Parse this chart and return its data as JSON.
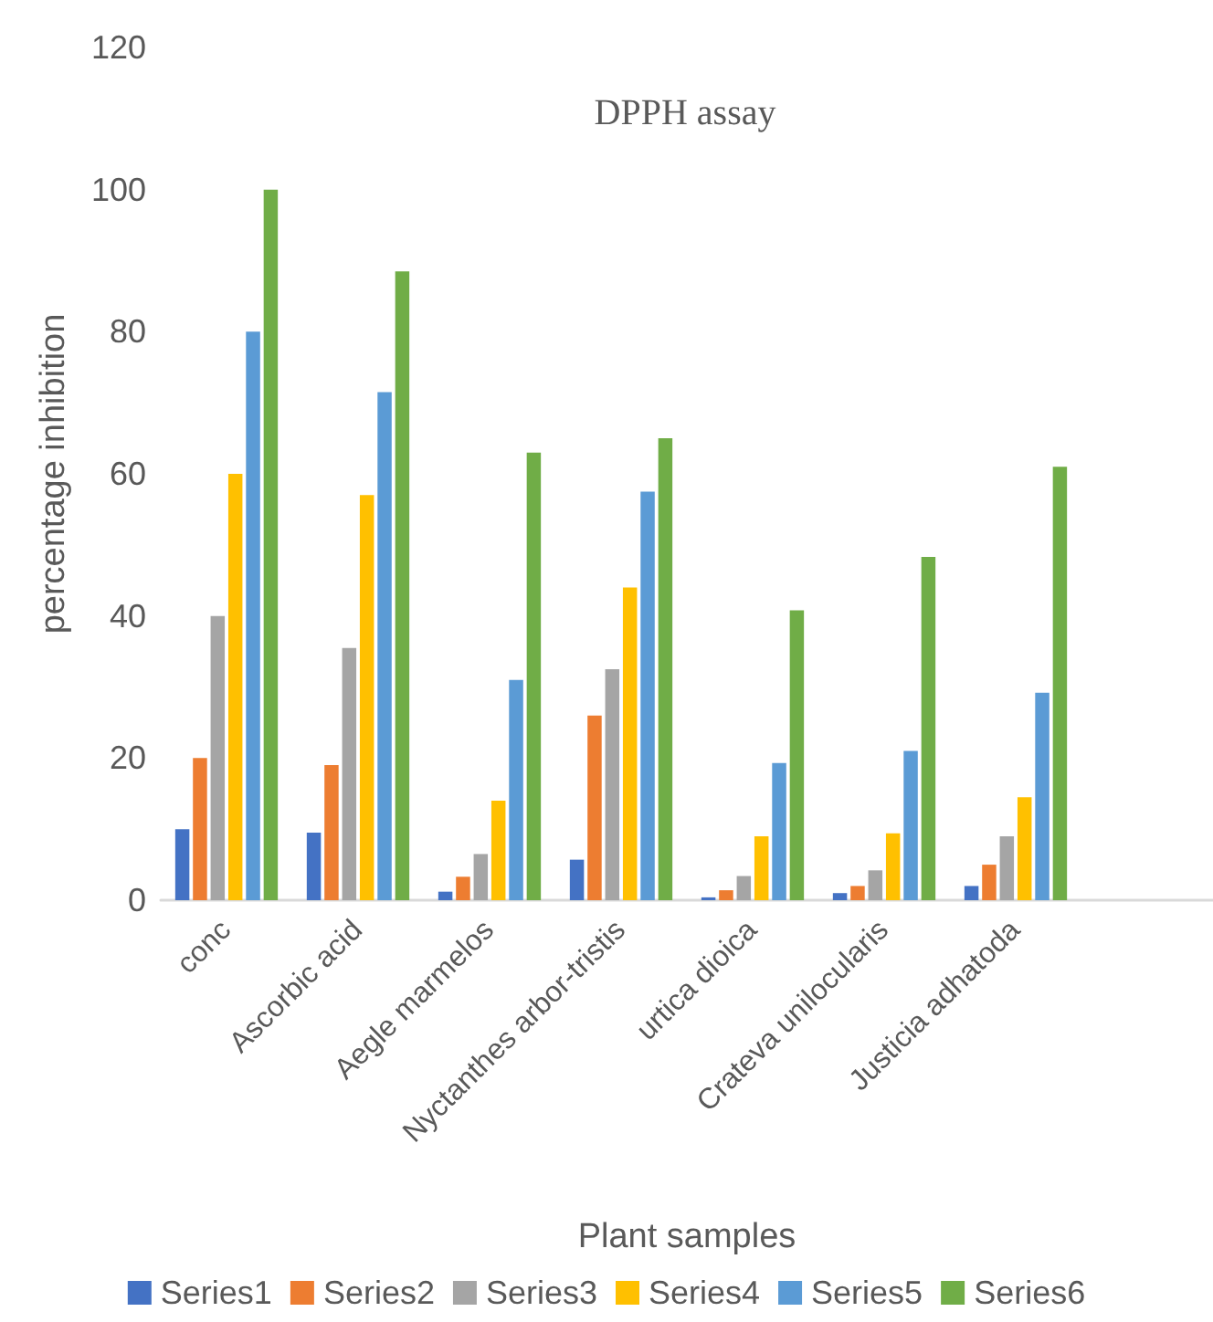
{
  "chart_data": {
    "type": "bar",
    "title": "DPPH assay",
    "xlabel": "Plant samples",
    "ylabel": "percentage inhibition",
    "categories": [
      "conc",
      "Ascorbic acid",
      "Aegle marmelos",
      "Nyctanthes arbor-tristis",
      "urtica dioica",
      "Crateva unilocularis",
      "Justicia adhatoda",
      null
    ],
    "series": [
      {
        "name": "Series1",
        "color": "#4472c4",
        "values": [
          10,
          9.5,
          1.2,
          5.7,
          0.4,
          1,
          2,
          null
        ]
      },
      {
        "name": "Series2",
        "color": "#ed7d31",
        "values": [
          20,
          19,
          3.3,
          26,
          1.4,
          2,
          5,
          null
        ]
      },
      {
        "name": "Series3",
        "color": "#a5a5a5",
        "values": [
          40,
          35.5,
          6.5,
          32.5,
          3.4,
          4.2,
          9,
          null
        ]
      },
      {
        "name": "Series4",
        "color": "#ffc000",
        "values": [
          60,
          57,
          14,
          44,
          9,
          9.4,
          14.5,
          null
        ]
      },
      {
        "name": "Series5",
        "color": "#5b9bd5",
        "values": [
          80,
          71.5,
          31,
          57.5,
          19.3,
          21,
          29.2,
          null
        ]
      },
      {
        "name": "Series6",
        "color": "#70ad47",
        "values": [
          100,
          88.5,
          63,
          65,
          40.8,
          48.3,
          61,
          null
        ]
      }
    ],
    "ylim": [
      0,
      120
    ],
    "yticks": [
      0,
      20,
      40,
      60,
      80,
      100,
      120
    ],
    "grid": false,
    "legend": "bottom"
  }
}
